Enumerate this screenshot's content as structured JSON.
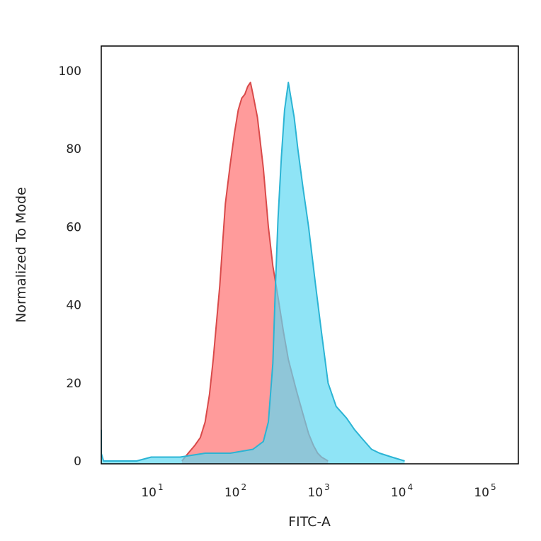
{
  "chart_data": {
    "type": "area",
    "title": "",
    "xlabel": "FITC-A",
    "ylabel": "Normalized To Mode",
    "x_scale": "log",
    "xlim": [
      2,
      100000
    ],
    "ylim": [
      0,
      100
    ],
    "x_ticks": [
      {
        "base": "10",
        "exp": "1",
        "value": 10
      },
      {
        "base": "10",
        "exp": "2",
        "value": 100
      },
      {
        "base": "10",
        "exp": "3",
        "value": 1000
      },
      {
        "base": "10",
        "exp": "4",
        "value": 10000
      },
      {
        "base": "10",
        "exp": "5",
        "value": 100000
      }
    ],
    "y_ticks": [
      "0",
      "20",
      "40",
      "60",
      "80",
      "100"
    ],
    "grid": false,
    "legend": "none",
    "series": [
      {
        "color": "#d94a4a",
        "fill": "#ff8a8a",
        "points": [
          [
            21,
            0
          ],
          [
            25,
            2
          ],
          [
            30,
            4
          ],
          [
            35,
            6
          ],
          [
            40,
            10
          ],
          [
            45,
            17
          ],
          [
            50,
            26
          ],
          [
            55,
            36
          ],
          [
            60,
            45
          ],
          [
            65,
            56
          ],
          [
            70,
            66
          ],
          [
            80,
            76
          ],
          [
            90,
            84
          ],
          [
            100,
            90
          ],
          [
            110,
            93
          ],
          [
            120,
            94
          ],
          [
            130,
            96
          ],
          [
            140,
            97
          ],
          [
            150,
            94
          ],
          [
            170,
            88
          ],
          [
            200,
            75
          ],
          [
            230,
            60
          ],
          [
            260,
            50
          ],
          [
            300,
            42
          ],
          [
            350,
            33
          ],
          [
            400,
            26
          ],
          [
            500,
            18
          ],
          [
            600,
            12
          ],
          [
            700,
            7
          ],
          [
            800,
            4
          ],
          [
            900,
            2
          ],
          [
            1000,
            1
          ],
          [
            1200,
            0
          ]
        ]
      },
      {
        "color": "#2bb4d4",
        "fill": "#5fd8f2",
        "points": [
          [
            2,
            8
          ],
          [
            2.1,
            5
          ],
          [
            2.2,
            2
          ],
          [
            2.4,
            0
          ],
          [
            6,
            0
          ],
          [
            9,
            1
          ],
          [
            14,
            1
          ],
          [
            20,
            1
          ],
          [
            40,
            2
          ],
          [
            80,
            2
          ],
          [
            150,
            3
          ],
          [
            200,
            5
          ],
          [
            230,
            10
          ],
          [
            260,
            25
          ],
          [
            280,
            45
          ],
          [
            300,
            62
          ],
          [
            330,
            78
          ],
          [
            360,
            90
          ],
          [
            400,
            97
          ],
          [
            430,
            93
          ],
          [
            470,
            88
          ],
          [
            520,
            80
          ],
          [
            600,
            70
          ],
          [
            700,
            60
          ],
          [
            850,
            45
          ],
          [
            1000,
            33
          ],
          [
            1200,
            20
          ],
          [
            1500,
            14
          ],
          [
            2000,
            11
          ],
          [
            2500,
            8
          ],
          [
            3000,
            6
          ],
          [
            4000,
            3
          ],
          [
            5000,
            2
          ],
          [
            7000,
            1
          ],
          [
            10000,
            0
          ]
        ]
      }
    ]
  }
}
